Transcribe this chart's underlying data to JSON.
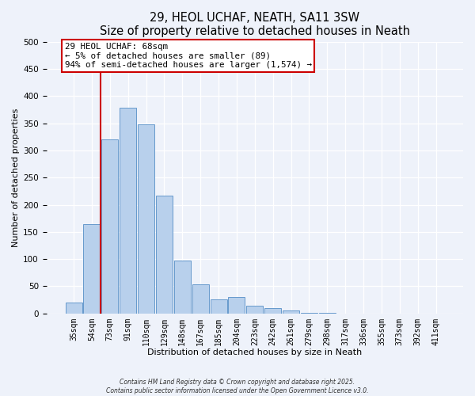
{
  "title": "29, HEOL UCHAF, NEATH, SA11 3SW",
  "subtitle": "Size of property relative to detached houses in Neath",
  "xlabel": "Distribution of detached houses by size in Neath",
  "ylabel": "Number of detached properties",
  "bar_labels": [
    "35sqm",
    "54sqm",
    "73sqm",
    "91sqm",
    "110sqm",
    "129sqm",
    "148sqm",
    "167sqm",
    "185sqm",
    "204sqm",
    "223sqm",
    "242sqm",
    "261sqm",
    "279sqm",
    "298sqm",
    "317sqm",
    "336sqm",
    "355sqm",
    "373sqm",
    "392sqm",
    "411sqm"
  ],
  "bar_values": [
    20,
    165,
    320,
    378,
    348,
    217,
    97,
    54,
    26,
    30,
    14,
    10,
    6,
    1,
    1,
    0,
    0,
    0,
    0,
    0,
    0
  ],
  "bar_color": "#b8d0ec",
  "bar_edge_color": "#6699cc",
  "vline_color": "#cc0000",
  "vline_index": 1.5,
  "annotation_text": "29 HEOL UCHAF: 68sqm\n← 5% of detached houses are smaller (89)\n94% of semi-detached houses are larger (1,574) →",
  "annotation_box_facecolor": "#ffffff",
  "annotation_box_edgecolor": "#cc0000",
  "ylim": [
    0,
    500
  ],
  "yticks": [
    0,
    50,
    100,
    150,
    200,
    250,
    300,
    350,
    400,
    450,
    500
  ],
  "background_color": "#eef2fa",
  "grid_color": "#ffffff",
  "title_fontsize": 10.5,
  "axis_label_fontsize": 8,
  "tick_fontsize": 7,
  "footer_line1": "Contains HM Land Registry data © Crown copyright and database right 2025.",
  "footer_line2": "Contains public sector information licensed under the Open Government Licence v3.0."
}
